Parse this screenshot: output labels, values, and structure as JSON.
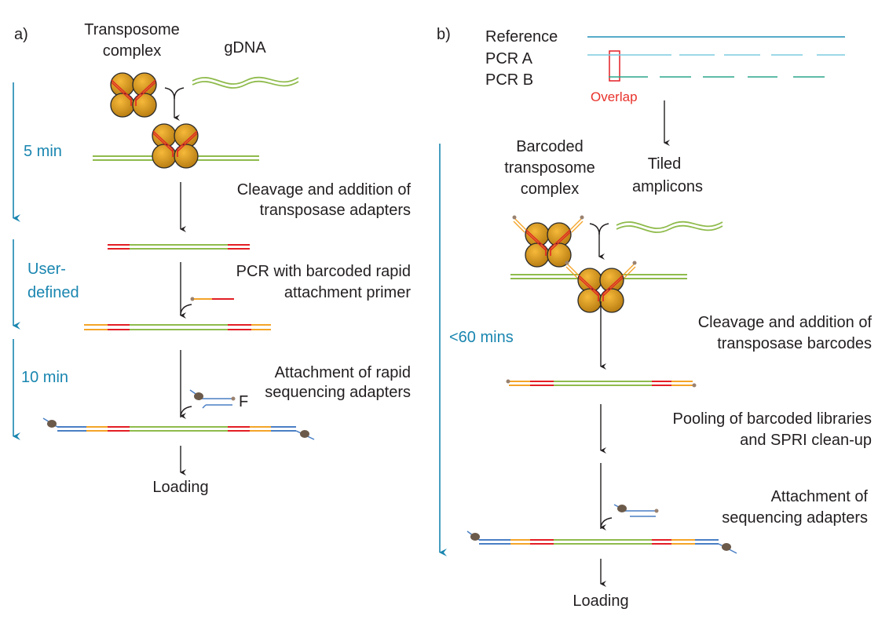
{
  "panel_a": {
    "label": "a)",
    "transposome_label": [
      "Transposome",
      "complex"
    ],
    "gdna_label": "gDNA",
    "timeline": [
      "5 min",
      "User-",
      "defined",
      "10 min"
    ],
    "steps": [
      [
        "Cleavage and addition of",
        "transposase adapters"
      ],
      [
        "PCR with barcoded rapid",
        "attachment primer"
      ],
      [
        "Attachment of rapid",
        "sequencing adapters"
      ]
    ],
    "adapter_mark": "F",
    "final": "Loading"
  },
  "panel_b": {
    "label": "b)",
    "tracks": [
      "Reference",
      "PCR A",
      "PCR B"
    ],
    "overlap": "Overlap",
    "timeline": "<60 mins",
    "transposome_label": [
      "Barcoded",
      "transposome",
      "complex"
    ],
    "amplicons_label": [
      "Tiled",
      "amplicons"
    ],
    "steps": [
      [
        "Cleavage and addition of",
        "transposase barcodes"
      ],
      [
        "Pooling of barcoded libraries",
        "and SPRI clean-up"
      ],
      [
        "Attachment of",
        "sequencing adapters"
      ]
    ],
    "final": "Loading"
  },
  "colors": {
    "timeline": "#1a86b0",
    "dna": "#8fbb4c",
    "barcode": "#e31e24",
    "primer": "#f4a428",
    "adapter": "#4a7fc4",
    "transposase": "#d4961c",
    "reference": "#1e8fb8",
    "pcr_a": "#7ccbe0",
    "pcr_b": "#2aa58c"
  }
}
